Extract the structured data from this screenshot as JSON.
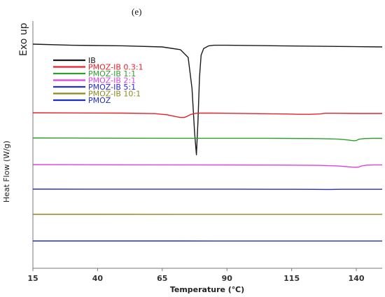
{
  "panel_label": "(e)",
  "chart_data": {
    "type": "line",
    "xlabel": "Temperature (℃)",
    "ylabel": "Heat Flow (W/g)",
    "annotation": "Exo up",
    "xlim": [
      15,
      150
    ],
    "xticks": [
      15,
      40,
      65,
      90,
      115,
      140
    ],
    "grid": false,
    "legend_position": "upper-left",
    "series": [
      {
        "name": "IB",
        "color": "#1a1a1a",
        "x": [
          15,
          30,
          50,
          65,
          72,
          75,
          76.5,
          77.5,
          78.2,
          78.8,
          79.4,
          80,
          81,
          83,
          85,
          90,
          110,
          130,
          150
        ],
        "y": [
          1.0,
          0.99,
          0.985,
          0.975,
          0.95,
          0.88,
          0.6,
          0.2,
          0.0,
          0.3,
          0.7,
          0.9,
          0.96,
          0.985,
          0.99,
          0.99,
          0.985,
          0.98,
          0.975
        ]
      },
      {
        "name": "PMOZ-IB 0.3:1",
        "color": "#e8202a",
        "x": [
          15,
          30,
          50,
          62,
          67,
          70,
          72,
          73.5,
          74.5,
          76,
          78,
          80,
          84,
          90,
          100,
          112,
          118,
          122,
          126,
          128,
          132,
          140,
          150
        ],
        "y": [
          1.0,
          0.995,
          0.99,
          0.975,
          0.94,
          0.89,
          0.86,
          0.86,
          0.89,
          0.95,
          0.985,
          0.99,
          0.99,
          0.985,
          0.975,
          0.965,
          0.955,
          0.955,
          0.965,
          0.985,
          0.985,
          0.98,
          0.98
        ]
      },
      {
        "name": "PMOZ-IB 1:1",
        "color": "#2ca02c",
        "x": [
          15,
          30,
          50,
          70,
          90,
          110,
          125,
          133,
          137,
          139,
          140,
          141,
          143,
          146,
          150
        ],
        "y": [
          1.0,
          0.995,
          0.99,
          0.985,
          0.985,
          0.98,
          0.97,
          0.94,
          0.89,
          0.85,
          0.86,
          0.93,
          0.97,
          0.98,
          0.98
        ]
      },
      {
        "name": "PMOZ-IB 2:1",
        "color": "#e040e0",
        "x": [
          15,
          30,
          50,
          70,
          90,
          110,
          125,
          133,
          137,
          139.5,
          141,
          142,
          144,
          147,
          150
        ],
        "y": [
          1.0,
          0.995,
          0.99,
          0.985,
          0.98,
          0.975,
          0.96,
          0.93,
          0.88,
          0.86,
          0.87,
          0.93,
          0.97,
          0.985,
          0.985
        ]
      },
      {
        "name": "PMOZ-IB 5:1",
        "color": "#2a2ad6",
        "x": [
          15,
          40,
          70,
          95,
          115,
          124,
          128,
          130,
          132,
          135,
          142,
          150
        ],
        "y": [
          1.0,
          0.995,
          0.99,
          0.985,
          0.98,
          0.975,
          0.965,
          0.965,
          0.975,
          0.98,
          0.98,
          0.98
        ]
      },
      {
        "name": "PMOZ-IB 10:1",
        "color": "#8a8a1e",
        "x": [
          15,
          40,
          70,
          95,
          110,
          130,
          150
        ],
        "y": [
          1.0,
          0.995,
          0.99,
          0.985,
          0.985,
          0.99,
          0.99
        ]
      },
      {
        "name": "PMOZ",
        "color": "#1c2cc8",
        "x": [
          15,
          40,
          70,
          85,
          95,
          110,
          130,
          150
        ],
        "y": [
          1.0,
          0.998,
          0.995,
          0.99,
          0.985,
          0.985,
          0.982,
          0.98
        ]
      }
    ]
  }
}
